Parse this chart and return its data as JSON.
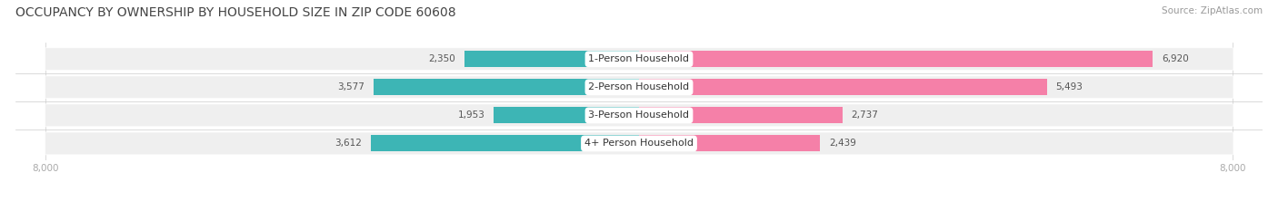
{
  "title": "OCCUPANCY BY OWNERSHIP BY HOUSEHOLD SIZE IN ZIP CODE 60608",
  "source": "Source: ZipAtlas.com",
  "categories": [
    "1-Person Household",
    "2-Person Household",
    "3-Person Household",
    "4+ Person Household"
  ],
  "owner_values": [
    2350,
    3577,
    1953,
    3612
  ],
  "renter_values": [
    6920,
    5493,
    2737,
    2439
  ],
  "owner_color": "#3db5b5",
  "renter_color": "#f580a8",
  "bg_stripe_color": "#efefef",
  "axis_max": 8000,
  "title_fontsize": 10,
  "source_fontsize": 7.5,
  "label_fontsize": 7.5,
  "cat_fontsize": 8,
  "bar_height": 0.58,
  "background_color": "#ffffff",
  "tick_color": "#aaaaaa",
  "value_color": "#555555",
  "sep_color": "#cccccc"
}
